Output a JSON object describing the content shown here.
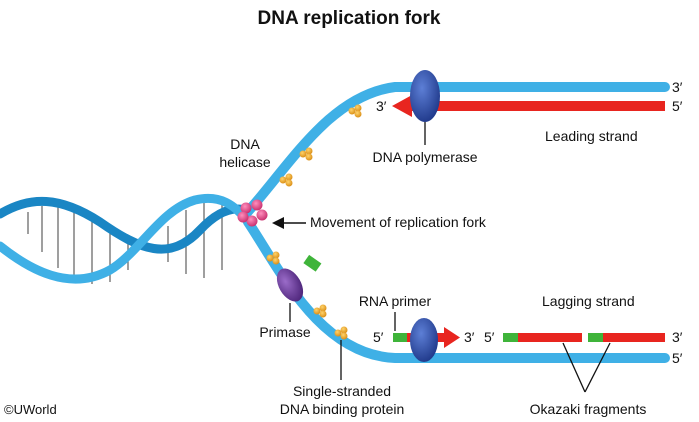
{
  "title": "DNA replication fork",
  "copyright": "©UWorld",
  "labels": {
    "dna_helicase_line1": "DNA",
    "dna_helicase_line2": "helicase",
    "movement": "Movement of replication fork",
    "dna_polymerase": "DNA polymerase",
    "leading_strand": "Leading strand",
    "lagging_strand": "Lagging strand",
    "rna_primer": "RNA primer",
    "primase": "Primase",
    "ssb_line1": "Single-stranded",
    "ssb_line2": "DNA binding protein",
    "okazaki": "Okazaki fragments"
  },
  "ends": {
    "top_right_3": "3′",
    "leading_right_5": "5′",
    "leading_arrow_3": "3′",
    "lagging_left_5": "5′",
    "lagging_arrow_3": "3′",
    "okazaki_5": "5′",
    "okazaki_3": "3′",
    "bottom_right_5": "5′"
  },
  "colors": {
    "strand": "#3fb0e6",
    "strand_dark": "#1a86c4",
    "new_strand": "#e8251f",
    "primer": "#3fb43a",
    "polymerase": "#2a4aa8",
    "helicase": "#e0508a",
    "primase": "#6a3a96",
    "ssb": "#f0a830"
  }
}
